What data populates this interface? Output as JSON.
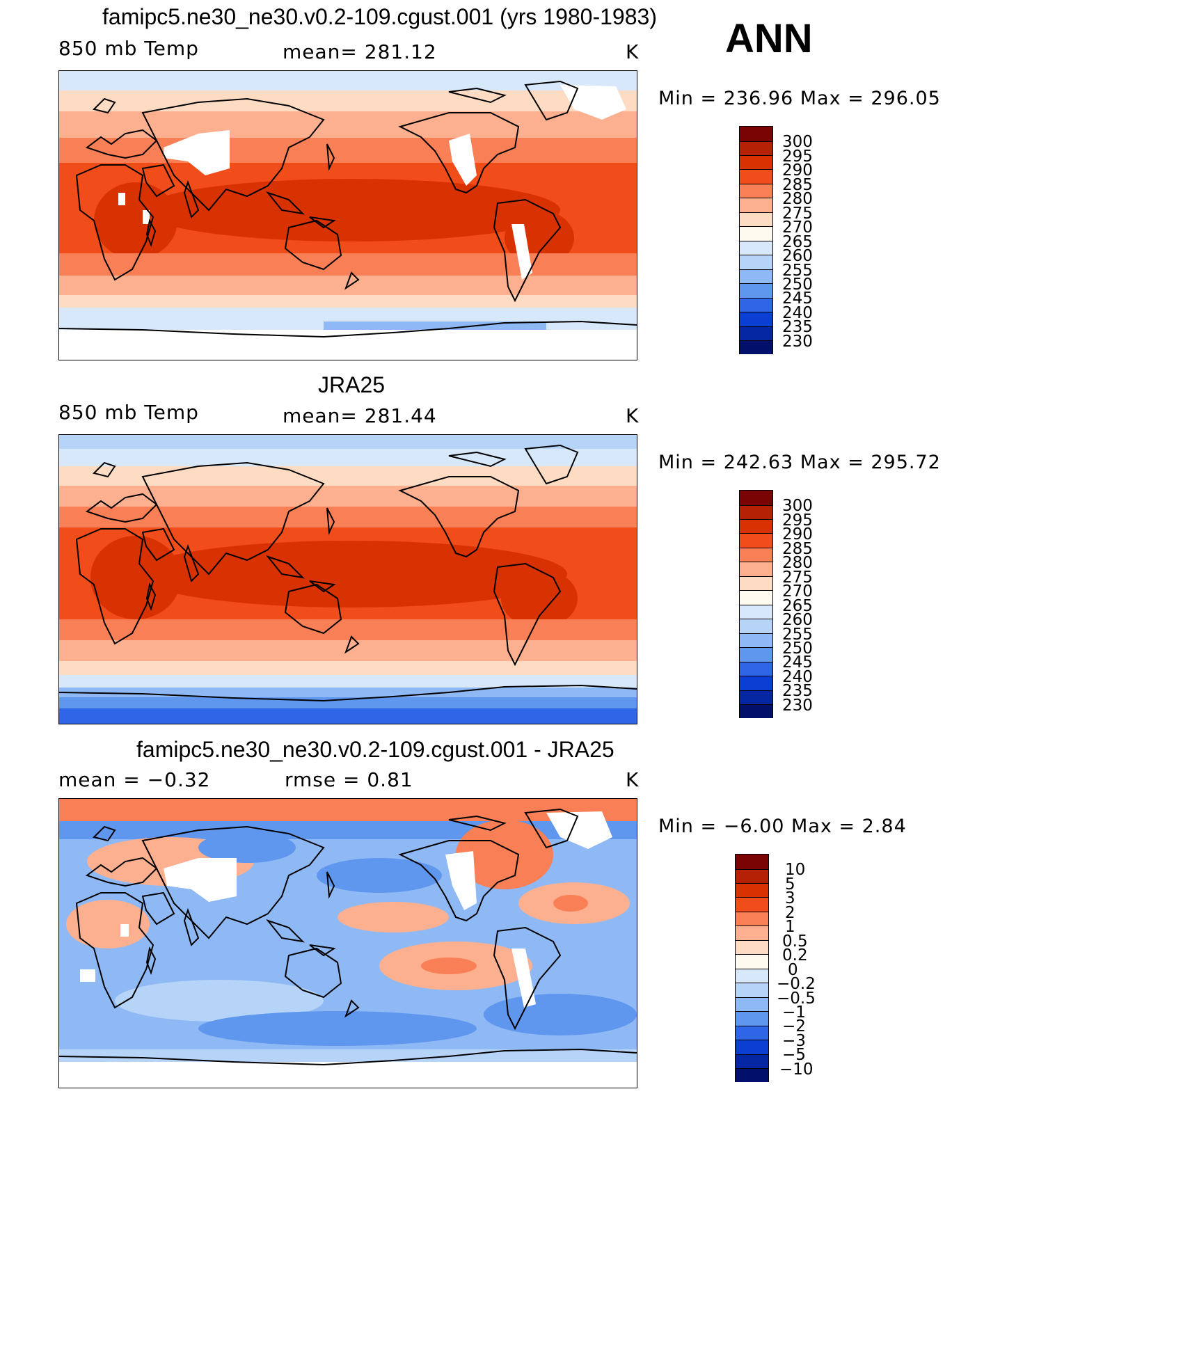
{
  "season": "ANN",
  "colors": {
    "temp_scale": [
      "#7a0403",
      "#b52104",
      "#d83102",
      "#f04d1b",
      "#f97f56",
      "#fdb08f",
      "#fedcc3",
      "#fffaf0",
      "#d7e8fb",
      "#b6d3f8",
      "#8fb9f5",
      "#5f96ee",
      "#2f66e7",
      "#0b3fd4",
      "#0426a2",
      "#020f6b"
    ],
    "diff_scale": [
      "#7a0403",
      "#b52104",
      "#d83102",
      "#f04d1b",
      "#f97f56",
      "#fdb08f",
      "#fedcc3",
      "#fffaf0",
      "#d7e8fb",
      "#b6d3f8",
      "#8fb9f5",
      "#5f96ee",
      "#2f66e7",
      "#0b3fd4",
      "#0426a2",
      "#020f6b"
    ]
  },
  "panels": [
    {
      "title": "famipc5.ne30_ne30.v0.2-109.cgust.001 (yrs 1980-1983)",
      "left_label": "850 mb Temp",
      "center_label": "mean=  281.12",
      "units": "K",
      "minmax": "Min  =  236.96  Max  =  296.05",
      "levels": [
        "300",
        "295",
        "290",
        "285",
        "280",
        "275",
        "270",
        "265",
        "260",
        "255",
        "250",
        "245",
        "240",
        "235",
        "230"
      ]
    },
    {
      "title": "JRA25",
      "left_label": "850 mb Temp",
      "center_label": "mean=  281.44",
      "units": "K",
      "minmax": "Min  =  242.63  Max  =  295.72",
      "levels": [
        "300",
        "295",
        "290",
        "285",
        "280",
        "275",
        "270",
        "265",
        "260",
        "255",
        "250",
        "245",
        "240",
        "235",
        "230"
      ]
    },
    {
      "title": "famipc5.ne30_ne30.v0.2-109.cgust.001 - JRA25",
      "left_label": "mean  =    −0.32",
      "center_label": "rmse  =     0.81",
      "units": "K",
      "minmax": "Min  =    −6.00  Max  =     2.84",
      "levels": [
        "10",
        "5",
        "3",
        "2",
        "1",
        "0.5",
        "0.2",
        "0",
        "−0.2",
        "−0.5",
        "−1",
        "−2",
        "−3",
        "−5",
        "−10"
      ]
    }
  ]
}
